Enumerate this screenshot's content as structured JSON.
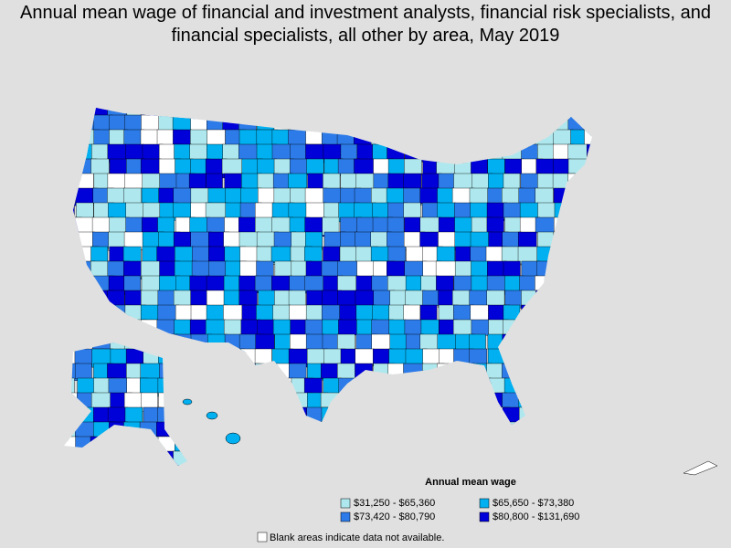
{
  "title": "Annual mean wage of financial and investment analysts, financial risk specialists, and financial specialists, all other by area, May 2019",
  "legend": {
    "title": "Annual mean wage",
    "items": [
      {
        "label": "$31,250 - $65,360",
        "color": "#aee8ee"
      },
      {
        "label": "$65,650 - $73,380",
        "color": "#00b0f0"
      },
      {
        "label": "$73,420 - $80,790",
        "color": "#2c7be8"
      },
      {
        "label": "$80,800 - $131,690",
        "color": "#0000d8"
      }
    ]
  },
  "note": "Blank areas indicate data not available."
}
